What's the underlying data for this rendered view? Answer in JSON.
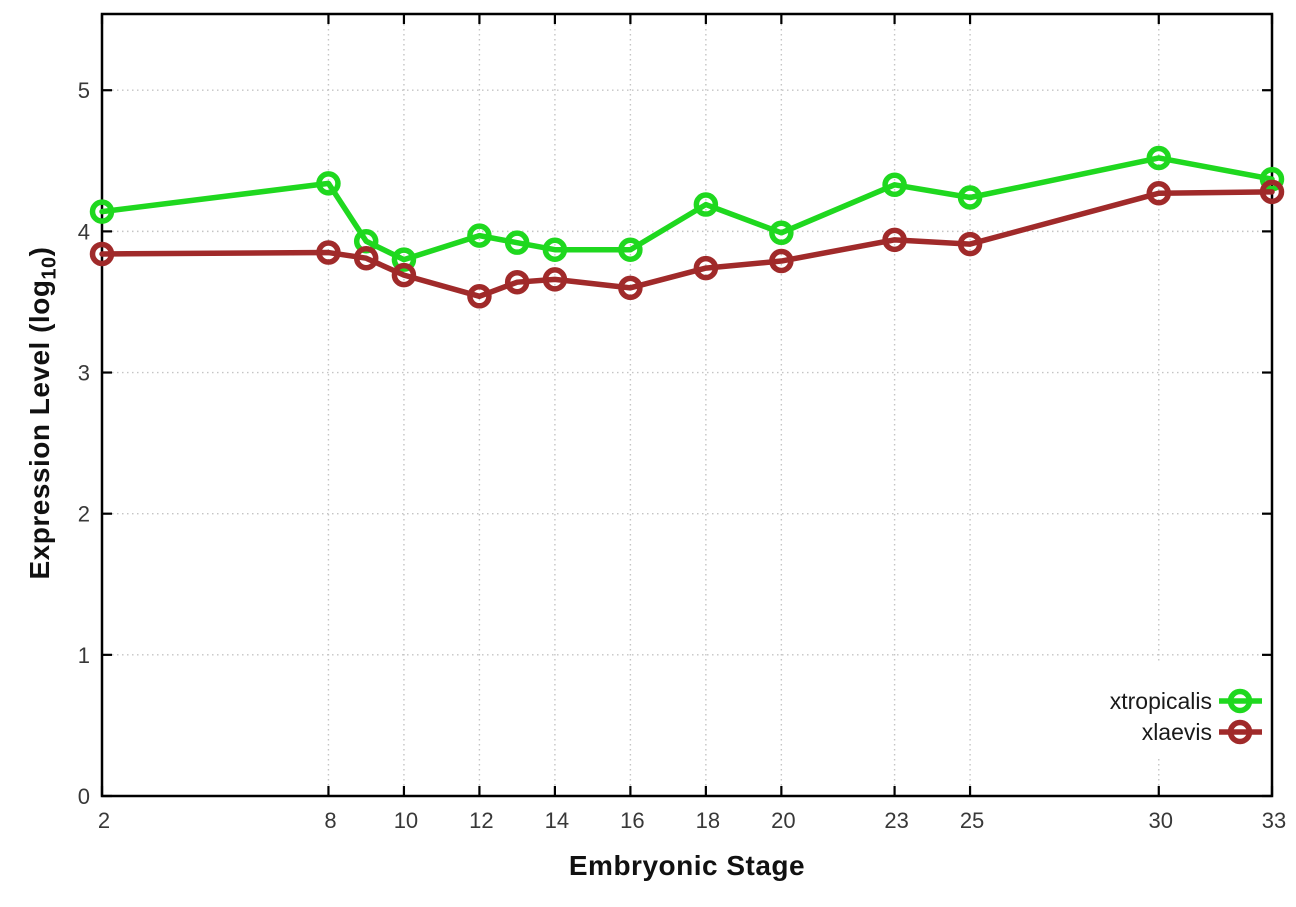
{
  "chart_data": {
    "type": "line",
    "title": "",
    "xlabel": "Embryonic Stage",
    "ylabel": "Expression Level (log10)",
    "ylabel_parts": {
      "pre": "Expression Level (log",
      "sub": "10",
      "post": ")"
    },
    "x": [
      2,
      8,
      9,
      10,
      12,
      13,
      14,
      16,
      18,
      20,
      23,
      25,
      30,
      33
    ],
    "series": [
      {
        "name": "xtropicalis",
        "color": "#1fd81f",
        "values": [
          4.14,
          4.34,
          3.93,
          3.8,
          3.97,
          3.92,
          3.87,
          3.87,
          4.19,
          3.99,
          4.33,
          4.24,
          4.52,
          4.37
        ]
      },
      {
        "name": "xlaevis",
        "color": "#a02a2a",
        "values": [
          3.84,
          3.85,
          3.81,
          3.69,
          3.54,
          3.64,
          3.66,
          3.6,
          3.74,
          3.79,
          3.94,
          3.91,
          4.27,
          4.28
        ]
      }
    ],
    "x_ticks": [
      2,
      8,
      10,
      12,
      14,
      16,
      18,
      20,
      23,
      25,
      30,
      33
    ],
    "x_tick_labels": [
      "2",
      "8",
      "10",
      "12",
      "14",
      "16",
      "18",
      "20",
      "23",
      "25",
      "30",
      "33"
    ],
    "y_ticks": [
      0,
      1,
      2,
      3,
      4,
      5
    ],
    "y_tick_labels": [
      "0",
      "1",
      "2",
      "3",
      "4",
      "5"
    ],
    "xlim": [
      2,
      33
    ],
    "ylim": [
      0,
      5.54
    ],
    "grid": true,
    "marker": "open-circle",
    "legend_position": "bottom-right",
    "colors": {
      "border": "#000000",
      "grid": "#c4c4c4",
      "tick_label": "#383838",
      "background": "#ffffff"
    }
  }
}
